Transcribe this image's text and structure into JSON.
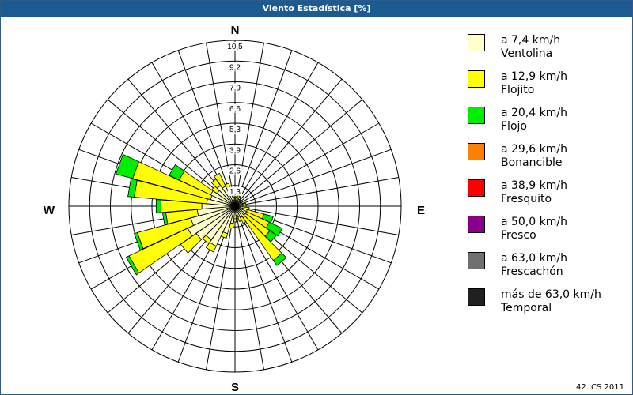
{
  "window": {
    "title": "Viento Estadística [%]",
    "footer": "42. CS 2011"
  },
  "chart_data": {
    "type": "wind-rose",
    "title": "Viento Estadística [%]",
    "unit": "%",
    "compass": [
      "N",
      "E",
      "S",
      "W"
    ],
    "rmax": 10.5,
    "ring_labels": [
      "1,3",
      "2,6",
      "3,9",
      "5,3",
      "6,6",
      "7,9",
      "9,2",
      "10,5"
    ],
    "ring_count": 8,
    "sectors": 36,
    "grid": true,
    "legend_position": "right",
    "bins": [
      {
        "range": "a 7,4 km/h",
        "name": "Ventolina",
        "color": "#ffffcc"
      },
      {
        "range": "a 12,9 km/h",
        "name": "Flojito",
        "color": "#ffff00"
      },
      {
        "range": "a 20,4 km/h",
        "name": "Flojo",
        "color": "#00ee00"
      },
      {
        "range": "a 29,6 km/h",
        "name": "Bonancible",
        "color": "#ff8000"
      },
      {
        "range": "a 38,9 km/h",
        "name": "Fresquito",
        "color": "#ff0000"
      },
      {
        "range": "a 50,0 km/h",
        "name": "Fresco",
        "color": "#8b008b"
      },
      {
        "range": "a 63,0 km/h",
        "name": "Frescachón",
        "color": "#707070"
      },
      {
        "range": "más de 63,0 km/h",
        "name": "Temporal",
        "color": "#202020"
      }
    ],
    "directions": [
      {
        "deg": 0,
        "values": [
          0.3,
          0.2,
          0.0
        ]
      },
      {
        "deg": 10,
        "values": [
          0.4,
          0.2,
          0.0
        ]
      },
      {
        "deg": 20,
        "values": [
          0.5,
          0.2,
          0.0
        ]
      },
      {
        "deg": 30,
        "values": [
          0.5,
          0.1,
          0.0
        ]
      },
      {
        "deg": 40,
        "values": [
          0.4,
          0.1,
          0.0
        ]
      },
      {
        "deg": 50,
        "values": [
          0.3,
          0.1,
          0.0
        ]
      },
      {
        "deg": 60,
        "values": [
          0.3,
          0.1,
          0.0
        ]
      },
      {
        "deg": 70,
        "values": [
          0.4,
          0.1,
          0.0
        ]
      },
      {
        "deg": 80,
        "values": [
          0.5,
          0.2,
          0.0
        ]
      },
      {
        "deg": 90,
        "values": [
          0.5,
          0.2,
          0.0
        ]
      },
      {
        "deg": 100,
        "values": [
          0.6,
          0.3,
          0.0
        ]
      },
      {
        "deg": 110,
        "values": [
          0.8,
          1.1,
          0.6
        ]
      },
      {
        "deg": 120,
        "values": [
          0.8,
          1.6,
          0.9
        ]
      },
      {
        "deg": 130,
        "values": [
          0.8,
          1.9,
          0.5
        ]
      },
      {
        "deg": 140,
        "values": [
          0.9,
          3.3,
          0.4
        ]
      },
      {
        "deg": 150,
        "values": [
          0.8,
          0.4,
          0.0
        ]
      },
      {
        "deg": 160,
        "values": [
          0.7,
          0.3,
          0.0
        ]
      },
      {
        "deg": 170,
        "values": [
          0.6,
          0.2,
          0.0
        ]
      },
      {
        "deg": 180,
        "values": [
          0.8,
          0.2,
          0.0
        ]
      },
      {
        "deg": 190,
        "values": [
          1.1,
          0.3,
          0.0
        ]
      },
      {
        "deg": 200,
        "values": [
          1.8,
          0.3,
          0.0
        ]
      },
      {
        "deg": 210,
        "values": [
          2.8,
          0.4,
          0.0
        ]
      },
      {
        "deg": 220,
        "values": [
          2.6,
          0.3,
          0.0
        ]
      },
      {
        "deg": 230,
        "values": [
          3.0,
          1.2,
          0.0
        ]
      },
      {
        "deg": 240,
        "values": [
          3.3,
          4.1,
          0.2
        ]
      },
      {
        "deg": 250,
        "values": [
          2.9,
          3.5,
          0.2
        ]
      },
      {
        "deg": 260,
        "values": [
          2.4,
          2.0,
          0.2
        ]
      },
      {
        "deg": 270,
        "values": [
          2.1,
          2.6,
          0.3
        ]
      },
      {
        "deg": 280,
        "values": [
          1.8,
          4.6,
          0.4
        ]
      },
      {
        "deg": 290,
        "values": [
          1.6,
          5.1,
          1.1
        ]
      },
      {
        "deg": 300,
        "values": [
          1.7,
          2.2,
          0.7
        ]
      },
      {
        "deg": 310,
        "values": [
          1.4,
          0.4,
          0.0
        ]
      },
      {
        "deg": 320,
        "values": [
          1.6,
          0.5,
          0.0
        ]
      },
      {
        "deg": 330,
        "values": [
          1.4,
          0.9,
          0.0
        ]
      },
      {
        "deg": 340,
        "values": [
          0.9,
          0.6,
          0.0
        ]
      },
      {
        "deg": 350,
        "values": [
          0.4,
          0.2,
          0.0
        ]
      }
    ]
  }
}
